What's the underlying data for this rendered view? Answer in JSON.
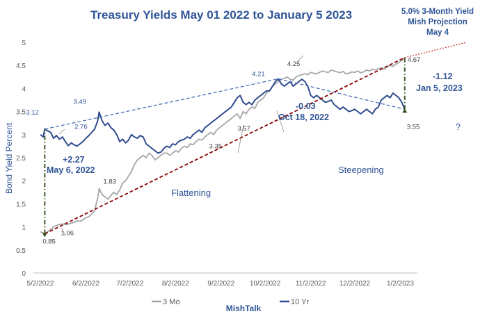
{
  "chart_data": {
    "type": "line",
    "title": "Treasury Yields May 01 2022 to January 5 2023",
    "ylabel": "Bond Yield Percent",
    "ylim": [
      0,
      5
    ],
    "yticks": [
      "0",
      "0.5",
      "1",
      "1.5",
      "2",
      "2.5",
      "3",
      "3.5",
      "4",
      "4.5",
      "5"
    ],
    "xlim": [
      0,
      250
    ],
    "xticks": [
      {
        "label": "5/2/2022",
        "day": 0
      },
      {
        "label": "6/2/2022",
        "day": 31
      },
      {
        "label": "7/2/2022",
        "day": 61
      },
      {
        "label": "8/2/2022",
        "day": 92
      },
      {
        "label": "9/2/2022",
        "day": 123
      },
      {
        "label": "10/2/2022",
        "day": 153
      },
      {
        "label": "11/2/2022",
        "day": 184
      },
      {
        "label": "12/2/2022",
        "day": 214
      },
      {
        "label": "1/2/2023",
        "day": 245
      }
    ],
    "series": [
      {
        "name": "3 Mo",
        "color": "#a6a6a6",
        "points": [
          [
            0,
            0.89
          ],
          [
            2,
            0.87
          ],
          [
            3,
            0.85
          ],
          [
            6,
            0.92
          ],
          [
            9,
            1.0
          ],
          [
            11,
            1.03
          ],
          [
            14,
            1.06
          ],
          [
            16,
            1.06
          ],
          [
            18,
            1.05
          ],
          [
            20,
            1.07
          ],
          [
            23,
            1.1
          ],
          [
            25,
            1.13
          ],
          [
            27,
            1.12
          ],
          [
            29,
            1.15
          ],
          [
            31,
            1.2
          ],
          [
            33,
            1.22
          ],
          [
            35,
            1.28
          ],
          [
            37,
            1.35
          ],
          [
            38,
            1.5
          ],
          [
            39,
            1.62
          ],
          [
            40,
            1.83
          ],
          [
            42,
            1.7
          ],
          [
            44,
            1.65
          ],
          [
            46,
            1.6
          ],
          [
            48,
            1.68
          ],
          [
            50,
            1.75
          ],
          [
            52,
            1.7
          ],
          [
            54,
            1.8
          ],
          [
            56,
            1.95
          ],
          [
            58,
            2.0
          ],
          [
            60,
            2.1
          ],
          [
            62,
            2.2
          ],
          [
            64,
            2.35
          ],
          [
            66,
            2.45
          ],
          [
            68,
            2.5
          ],
          [
            70,
            2.55
          ],
          [
            72,
            2.5
          ],
          [
            74,
            2.6
          ],
          [
            76,
            2.55
          ],
          [
            78,
            2.45
          ],
          [
            80,
            2.5
          ],
          [
            82,
            2.55
          ],
          [
            84,
            2.6
          ],
          [
            86,
            2.6
          ],
          [
            88,
            2.55
          ],
          [
            90,
            2.6
          ],
          [
            92,
            2.65
          ],
          [
            94,
            2.62
          ],
          [
            96,
            2.7
          ],
          [
            98,
            2.75
          ],
          [
            100,
            2.72
          ],
          [
            102,
            2.8
          ],
          [
            104,
            2.78
          ],
          [
            106,
            2.85
          ],
          [
            108,
            2.9
          ],
          [
            110,
            2.88
          ],
          [
            112,
            2.95
          ],
          [
            114,
            3.0
          ],
          [
            116,
            3.05
          ],
          [
            118,
            3.0
          ],
          [
            120,
            3.1
          ],
          [
            122,
            3.15
          ],
          [
            124,
            3.2
          ],
          [
            126,
            3.25
          ],
          [
            128,
            3.3
          ],
          [
            130,
            3.35
          ],
          [
            132,
            3.4
          ],
          [
            134,
            3.45
          ],
          [
            136,
            3.35
          ],
          [
            138,
            3.5
          ],
          [
            140,
            3.45
          ],
          [
            142,
            3.55
          ],
          [
            144,
            3.6
          ],
          [
            146,
            3.57
          ],
          [
            148,
            3.7
          ],
          [
            150,
            3.75
          ],
          [
            152,
            3.8
          ],
          [
            154,
            3.9
          ],
          [
            156,
            3.95
          ],
          [
            158,
            4.05
          ],
          [
            160,
            4.1
          ],
          [
            162,
            4.15
          ],
          [
            164,
            4.2
          ],
          [
            166,
            4.22
          ],
          [
            168,
            4.25
          ],
          [
            170,
            4.2
          ],
          [
            172,
            4.18
          ],
          [
            174,
            4.25
          ],
          [
            176,
            4.28
          ],
          [
            178,
            4.3
          ],
          [
            180,
            4.32
          ],
          [
            182,
            4.3
          ],
          [
            184,
            4.35
          ],
          [
            186,
            4.33
          ],
          [
            188,
            4.32
          ],
          [
            190,
            4.35
          ],
          [
            192,
            4.38
          ],
          [
            194,
            4.36
          ],
          [
            196,
            4.35
          ],
          [
            198,
            4.4
          ],
          [
            200,
            4.38
          ],
          [
            202,
            4.36
          ],
          [
            204,
            4.34
          ],
          [
            206,
            4.37
          ],
          [
            208,
            4.32
          ],
          [
            210,
            4.33
          ],
          [
            212,
            4.36
          ],
          [
            214,
            4.35
          ],
          [
            216,
            4.38
          ],
          [
            218,
            4.34
          ],
          [
            220,
            4.36
          ],
          [
            222,
            4.4
          ],
          [
            224,
            4.38
          ],
          [
            226,
            4.42
          ],
          [
            228,
            4.4
          ],
          [
            230,
            4.43
          ],
          [
            232,
            4.45
          ],
          [
            234,
            4.42
          ],
          [
            236,
            4.47
          ],
          [
            238,
            4.5
          ],
          [
            240,
            4.48
          ],
          [
            242,
            4.53
          ],
          [
            244,
            4.56
          ],
          [
            246,
            4.61
          ],
          [
            248,
            4.67
          ]
        ]
      },
      {
        "name": "10 Yr",
        "color": "#2f4b8f",
        "points": [
          [
            0,
            3.0
          ],
          [
            2,
            2.95
          ],
          [
            3,
            3.12
          ],
          [
            5,
            3.08
          ],
          [
            7,
            3.05
          ],
          [
            9,
            2.92
          ],
          [
            11,
            2.98
          ],
          [
            13,
            2.9
          ],
          [
            15,
            2.95
          ],
          [
            17,
            2.85
          ],
          [
            19,
            2.76
          ],
          [
            21,
            2.82
          ],
          [
            23,
            2.78
          ],
          [
            25,
            2.75
          ],
          [
            27,
            2.8
          ],
          [
            29,
            2.85
          ],
          [
            31,
            2.92
          ],
          [
            33,
            2.98
          ],
          [
            35,
            3.05
          ],
          [
            37,
            3.12
          ],
          [
            39,
            3.3
          ],
          [
            40,
            3.49
          ],
          [
            42,
            3.3
          ],
          [
            44,
            3.2
          ],
          [
            46,
            3.25
          ],
          [
            48,
            3.15
          ],
          [
            50,
            3.1
          ],
          [
            52,
            3.0
          ],
          [
            54,
            2.85
          ],
          [
            56,
            2.9
          ],
          [
            58,
            2.82
          ],
          [
            60,
            2.88
          ],
          [
            62,
            3.0
          ],
          [
            64,
            2.95
          ],
          [
            66,
            2.92
          ],
          [
            68,
            2.98
          ],
          [
            70,
            2.95
          ],
          [
            72,
            2.8
          ],
          [
            74,
            2.75
          ],
          [
            76,
            2.7
          ],
          [
            78,
            2.65
          ],
          [
            80,
            2.6
          ],
          [
            82,
            2.62
          ],
          [
            84,
            2.7
          ],
          [
            86,
            2.75
          ],
          [
            88,
            2.72
          ],
          [
            90,
            2.8
          ],
          [
            92,
            2.78
          ],
          [
            94,
            2.85
          ],
          [
            96,
            2.88
          ],
          [
            98,
            2.9
          ],
          [
            100,
            2.95
          ],
          [
            102,
            2.92
          ],
          [
            104,
            3.0
          ],
          [
            106,
            3.05
          ],
          [
            108,
            3.1
          ],
          [
            110,
            3.05
          ],
          [
            112,
            3.15
          ],
          [
            114,
            3.2
          ],
          [
            116,
            3.25
          ],
          [
            118,
            3.3
          ],
          [
            120,
            3.35
          ],
          [
            122,
            3.4
          ],
          [
            124,
            3.45
          ],
          [
            126,
            3.5
          ],
          [
            128,
            3.55
          ],
          [
            130,
            3.6
          ],
          [
            132,
            3.7
          ],
          [
            134,
            3.8
          ],
          [
            136,
            3.85
          ],
          [
            138,
            3.7
          ],
          [
            140,
            3.65
          ],
          [
            142,
            3.7
          ],
          [
            144,
            3.65
          ],
          [
            146,
            3.75
          ],
          [
            148,
            3.8
          ],
          [
            150,
            3.85
          ],
          [
            152,
            3.9
          ],
          [
            154,
            3.95
          ],
          [
            156,
            3.95
          ],
          [
            158,
            4.05
          ],
          [
            160,
            4.15
          ],
          [
            162,
            4.21
          ],
          [
            164,
            4.1
          ],
          [
            166,
            4.05
          ],
          [
            168,
            4.1
          ],
          [
            170,
            4.15
          ],
          [
            172,
            4.05
          ],
          [
            174,
            4.1
          ],
          [
            176,
            4.15
          ],
          [
            178,
            4.2
          ],
          [
            180,
            4.15
          ],
          [
            182,
            4.05
          ],
          [
            184,
            3.85
          ],
          [
            186,
            3.8
          ],
          [
            188,
            3.85
          ],
          [
            190,
            3.8
          ],
          [
            192,
            3.75
          ],
          [
            194,
            3.7
          ],
          [
            196,
            3.72
          ],
          [
            198,
            3.75
          ],
          [
            200,
            3.65
          ],
          [
            202,
            3.6
          ],
          [
            204,
            3.55
          ],
          [
            206,
            3.6
          ],
          [
            208,
            3.55
          ],
          [
            210,
            3.5
          ],
          [
            212,
            3.52
          ],
          [
            214,
            3.55
          ],
          [
            216,
            3.5
          ],
          [
            218,
            3.45
          ],
          [
            220,
            3.5
          ],
          [
            222,
            3.55
          ],
          [
            224,
            3.5
          ],
          [
            226,
            3.45
          ],
          [
            228,
            3.55
          ],
          [
            230,
            3.6
          ],
          [
            232,
            3.75
          ],
          [
            234,
            3.8
          ],
          [
            236,
            3.85
          ],
          [
            238,
            3.8
          ],
          [
            240,
            3.9
          ],
          [
            242,
            3.85
          ],
          [
            244,
            3.8
          ],
          [
            246,
            3.7
          ],
          [
            248,
            3.55
          ]
        ]
      }
    ],
    "trendlines": [
      {
        "name": "10 Yr trend up",
        "style": "dashed",
        "color": "#4a6fb5",
        "from": [
          3,
          3.12
        ],
        "to": [
          162,
          4.21
        ]
      },
      {
        "name": "10 Yr trend down",
        "style": "dashed",
        "color": "#4a6fb5",
        "from": [
          162,
          4.21
        ],
        "to": [
          248,
          3.55
        ]
      },
      {
        "name": "3 Mo trend",
        "style": "dashed",
        "color": "#8b0000",
        "from": [
          3,
          0.85
        ],
        "to": [
          248,
          4.67
        ]
      },
      {
        "name": "3 Mo projection",
        "style": "dotted",
        "color": "#c00000",
        "from": [
          248,
          4.67
        ],
        "to": [
          290,
          5.0
        ]
      }
    ],
    "spread_markers": [
      {
        "name": "spread May 6",
        "day": 3,
        "from": 0.85,
        "to": 3.12,
        "color": "#375623"
      },
      {
        "name": "spread Jan 5",
        "day": 248,
        "from": 3.55,
        "to": 4.67,
        "color": "#375623"
      }
    ],
    "point_labels": [
      {
        "text": "3.12",
        "day": 3,
        "value": 3.12,
        "color": "#2f5597"
      },
      {
        "text": "2.76",
        "day": 19,
        "value": 2.76,
        "color": "#2f5597"
      },
      {
        "text": "3.49",
        "day": 40,
        "value": 3.49,
        "color": "#2f5597"
      },
      {
        "text": "1.83",
        "day": 40,
        "value": 1.83,
        "color": "#404040"
      },
      {
        "text": "0.85",
        "day": 3,
        "value": 0.85,
        "color": "#404040"
      },
      {
        "text": "1.06",
        "day": 14,
        "value": 1.06,
        "color": "#404040"
      },
      {
        "text": "3.35",
        "day": 130,
        "value": 3.35,
        "color": "#404040"
      },
      {
        "text": "3.57",
        "day": 146,
        "value": 3.57,
        "color": "#404040"
      },
      {
        "text": "4.25",
        "day": 168,
        "value": 4.25,
        "color": "#404040"
      },
      {
        "text": "4.21",
        "day": 162,
        "value": 4.21,
        "color": "#2f5597"
      },
      {
        "text": "4.67",
        "day": 248,
        "value": 4.67,
        "color": "#404040"
      },
      {
        "text": "3.55",
        "day": 248,
        "value": 3.55,
        "color": "#404040"
      }
    ],
    "annotations": {
      "spread_may": "+2.27",
      "spread_may_date": "May 6, 2022",
      "flattening": "Flattening",
      "spread_oct": "-0.03",
      "spread_oct_date": "Oct 18, 2022",
      "steepening": "Steepening",
      "spread_jan": "-1.12",
      "spread_jan_date": "Jan 5, 2023",
      "projection_line1": "5.0% 3-Month Yield",
      "projection_line2": "Mish Projection",
      "projection_line3": "May 4",
      "question": "?"
    },
    "legend": [
      {
        "name": "3 Mo",
        "color": "#a6a6a6"
      },
      {
        "name": "10 Yr",
        "color": "#2f4b8f"
      }
    ],
    "source": "MishTalk"
  }
}
